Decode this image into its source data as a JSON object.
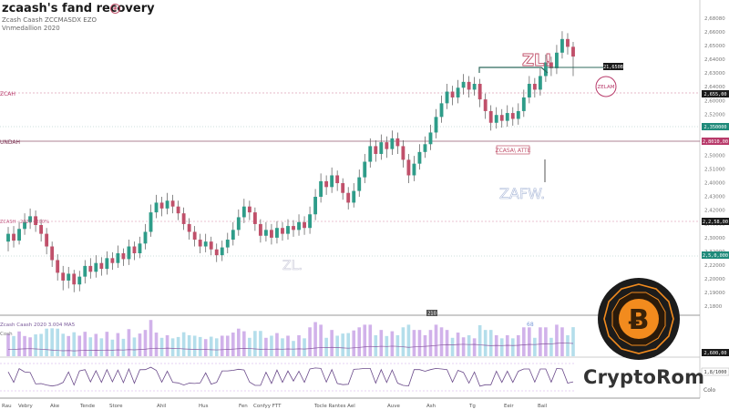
{
  "header": {
    "title": "zcaash's fand recovery",
    "subtitle_1": "Zcash Caash ZCCMASDX EZO",
    "subtitle_2": "Vnmedallion 2020",
    "pin_glyph": "◈"
  },
  "brand": {
    "name": "CryptoRom",
    "logo_glyph": "Ƀ",
    "logo_icon": "bitcoin-coin-icon"
  },
  "colors": {
    "up": "#2e9c89",
    "down": "#c0506a",
    "wick": "#555555",
    "accent_pink": "#b83a6a",
    "teal_tag": "#1f8a7a",
    "coin_orange": "#f28b1e"
  },
  "chart_data": {
    "type": "candlestick",
    "y_ticks": [
      "2,68080",
      "2,66000",
      "2,65000",
      "2,64000",
      "2,63000",
      "2,64000",
      "2,60000",
      "2,52000",
      "2,51000",
      "2,50000",
      "2,50000",
      "2,51000",
      "2,40000",
      "2,43000",
      "2,42000",
      "2,40000",
      "2,30000",
      "2,32000",
      "2,22000",
      "2,20000",
      "2,19000",
      "2,1800"
    ],
    "x_ticks": [
      "Rau",
      "Vebry",
      "Ake",
      "Tende",
      "Store",
      "Ahil",
      "Hus",
      "Fen",
      "Confyy FTT",
      "Tocle Rantes Ael",
      "Auve",
      "Ash",
      "Tg",
      "Eeir",
      "Bail"
    ],
    "candles": [
      {
        "o": 2.25,
        "c": 2.258,
        "h": 2.265,
        "l": 2.24
      },
      {
        "o": 2.258,
        "c": 2.251,
        "h": 2.266,
        "l": 2.244
      },
      {
        "o": 2.251,
        "c": 2.263,
        "h": 2.27,
        "l": 2.247
      },
      {
        "o": 2.263,
        "c": 2.27,
        "h": 2.279,
        "l": 2.257
      },
      {
        "o": 2.27,
        "c": 2.276,
        "h": 2.284,
        "l": 2.263
      },
      {
        "o": 2.276,
        "c": 2.267,
        "h": 2.282,
        "l": 2.26
      },
      {
        "o": 2.267,
        "c": 2.258,
        "h": 2.273,
        "l": 2.25
      },
      {
        "o": 2.258,
        "c": 2.245,
        "h": 2.264,
        "l": 2.237
      },
      {
        "o": 2.245,
        "c": 2.231,
        "h": 2.25,
        "l": 2.224
      },
      {
        "o": 2.231,
        "c": 2.218,
        "h": 2.237,
        "l": 2.21
      },
      {
        "o": 2.218,
        "c": 2.21,
        "h": 2.225,
        "l": 2.2
      },
      {
        "o": 2.21,
        "c": 2.217,
        "h": 2.224,
        "l": 2.202
      },
      {
        "o": 2.217,
        "c": 2.206,
        "h": 2.221,
        "l": 2.198
      },
      {
        "o": 2.206,
        "c": 2.214,
        "h": 2.22,
        "l": 2.199
      },
      {
        "o": 2.214,
        "c": 2.225,
        "h": 2.231,
        "l": 2.207
      },
      {
        "o": 2.225,
        "c": 2.219,
        "h": 2.233,
        "l": 2.212
      },
      {
        "o": 2.219,
        "c": 2.228,
        "h": 2.236,
        "l": 2.213
      },
      {
        "o": 2.228,
        "c": 2.222,
        "h": 2.234,
        "l": 2.215
      },
      {
        "o": 2.222,
        "c": 2.233,
        "h": 2.24,
        "l": 2.216
      },
      {
        "o": 2.233,
        "c": 2.228,
        "h": 2.239,
        "l": 2.221
      },
      {
        "o": 2.228,
        "c": 2.238,
        "h": 2.246,
        "l": 2.223
      },
      {
        "o": 2.238,
        "c": 2.232,
        "h": 2.243,
        "l": 2.225
      },
      {
        "o": 2.232,
        "c": 2.245,
        "h": 2.252,
        "l": 2.226
      },
      {
        "o": 2.245,
        "c": 2.238,
        "h": 2.25,
        "l": 2.231
      },
      {
        "o": 2.238,
        "c": 2.248,
        "h": 2.255,
        "l": 2.233
      },
      {
        "o": 2.248,
        "c": 2.26,
        "h": 2.268,
        "l": 2.242
      },
      {
        "o": 2.26,
        "c": 2.28,
        "h": 2.288,
        "l": 2.255
      },
      {
        "o": 2.28,
        "c": 2.29,
        "h": 2.298,
        "l": 2.274
      },
      {
        "o": 2.29,
        "c": 2.284,
        "h": 2.296,
        "l": 2.276
      },
      {
        "o": 2.284,
        "c": 2.292,
        "h": 2.3,
        "l": 2.278
      },
      {
        "o": 2.292,
        "c": 2.286,
        "h": 2.298,
        "l": 2.279
      },
      {
        "o": 2.286,
        "c": 2.279,
        "h": 2.292,
        "l": 2.272
      },
      {
        "o": 2.279,
        "c": 2.268,
        "h": 2.285,
        "l": 2.262
      },
      {
        "o": 2.268,
        "c": 2.26,
        "h": 2.274,
        "l": 2.252
      },
      {
        "o": 2.26,
        "c": 2.252,
        "h": 2.266,
        "l": 2.245
      },
      {
        "o": 2.252,
        "c": 2.245,
        "h": 2.258,
        "l": 2.238
      },
      {
        "o": 2.245,
        "c": 2.25,
        "h": 2.258,
        "l": 2.239
      },
      {
        "o": 2.25,
        "c": 2.242,
        "h": 2.255,
        "l": 2.236
      },
      {
        "o": 2.242,
        "c": 2.236,
        "h": 2.248,
        "l": 2.229
      },
      {
        "o": 2.236,
        "c": 2.244,
        "h": 2.251,
        "l": 2.23
      },
      {
        "o": 2.244,
        "c": 2.252,
        "h": 2.259,
        "l": 2.238
      },
      {
        "o": 2.252,
        "c": 2.262,
        "h": 2.27,
        "l": 2.246
      },
      {
        "o": 2.262,
        "c": 2.275,
        "h": 2.283,
        "l": 2.256
      },
      {
        "o": 2.275,
        "c": 2.286,
        "h": 2.294,
        "l": 2.269
      },
      {
        "o": 2.286,
        "c": 2.28,
        "h": 2.292,
        "l": 2.272
      },
      {
        "o": 2.28,
        "c": 2.268,
        "h": 2.285,
        "l": 2.261
      },
      {
        "o": 2.268,
        "c": 2.256,
        "h": 2.273,
        "l": 2.249
      },
      {
        "o": 2.256,
        "c": 2.262,
        "h": 2.27,
        "l": 2.25
      },
      {
        "o": 2.262,
        "c": 2.254,
        "h": 2.268,
        "l": 2.247
      },
      {
        "o": 2.254,
        "c": 2.264,
        "h": 2.271,
        "l": 2.248
      },
      {
        "o": 2.264,
        "c": 2.258,
        "h": 2.27,
        "l": 2.251
      },
      {
        "o": 2.258,
        "c": 2.266,
        "h": 2.273,
        "l": 2.252
      },
      {
        "o": 2.266,
        "c": 2.262,
        "h": 2.272,
        "l": 2.255
      },
      {
        "o": 2.262,
        "c": 2.27,
        "h": 2.278,
        "l": 2.256
      },
      {
        "o": 2.27,
        "c": 2.264,
        "h": 2.276,
        "l": 2.257
      },
      {
        "o": 2.264,
        "c": 2.278,
        "h": 2.286,
        "l": 2.258
      },
      {
        "o": 2.278,
        "c": 2.296,
        "h": 2.304,
        "l": 2.272
      },
      {
        "o": 2.296,
        "c": 2.312,
        "h": 2.32,
        "l": 2.29
      },
      {
        "o": 2.312,
        "c": 2.306,
        "h": 2.318,
        "l": 2.298
      },
      {
        "o": 2.306,
        "c": 2.318,
        "h": 2.326,
        "l": 2.3
      },
      {
        "o": 2.318,
        "c": 2.31,
        "h": 2.323,
        "l": 2.302
      },
      {
        "o": 2.31,
        "c": 2.3,
        "h": 2.315,
        "l": 2.293
      },
      {
        "o": 2.3,
        "c": 2.29,
        "h": 2.306,
        "l": 2.283
      },
      {
        "o": 2.29,
        "c": 2.302,
        "h": 2.31,
        "l": 2.285
      },
      {
        "o": 2.302,
        "c": 2.316,
        "h": 2.324,
        "l": 2.296
      },
      {
        "o": 2.316,
        "c": 2.332,
        "h": 2.34,
        "l": 2.31
      },
      {
        "o": 2.332,
        "c": 2.348,
        "h": 2.356,
        "l": 2.326
      },
      {
        "o": 2.348,
        "c": 2.34,
        "h": 2.354,
        "l": 2.332
      },
      {
        "o": 2.34,
        "c": 2.352,
        "h": 2.36,
        "l": 2.334
      },
      {
        "o": 2.352,
        "c": 2.345,
        "h": 2.358,
        "l": 2.336
      },
      {
        "o": 2.345,
        "c": 2.356,
        "h": 2.364,
        "l": 2.339
      },
      {
        "o": 2.356,
        "c": 2.348,
        "h": 2.362,
        "l": 2.34
      },
      {
        "o": 2.348,
        "c": 2.334,
        "h": 2.354,
        "l": 2.326
      },
      {
        "o": 2.334,
        "c": 2.318,
        "h": 2.34,
        "l": 2.31
      },
      {
        "o": 2.318,
        "c": 2.33,
        "h": 2.338,
        "l": 2.312
      },
      {
        "o": 2.33,
        "c": 2.342,
        "h": 2.35,
        "l": 2.324
      },
      {
        "o": 2.342,
        "c": 2.35,
        "h": 2.358,
        "l": 2.336
      },
      {
        "o": 2.35,
        "c": 2.362,
        "h": 2.37,
        "l": 2.344
      },
      {
        "o": 2.362,
        "c": 2.378,
        "h": 2.386,
        "l": 2.356
      },
      {
        "o": 2.378,
        "c": 2.392,
        "h": 2.4,
        "l": 2.372
      },
      {
        "o": 2.392,
        "c": 2.404,
        "h": 2.412,
        "l": 2.386
      },
      {
        "o": 2.404,
        "c": 2.398,
        "h": 2.41,
        "l": 2.39
      },
      {
        "o": 2.398,
        "c": 2.408,
        "h": 2.416,
        "l": 2.392
      },
      {
        "o": 2.408,
        "c": 2.414,
        "h": 2.422,
        "l": 2.401
      },
      {
        "o": 2.414,
        "c": 2.406,
        "h": 2.42,
        "l": 2.398
      },
      {
        "o": 2.406,
        "c": 2.412,
        "h": 2.419,
        "l": 2.4
      },
      {
        "o": 2.412,
        "c": 2.396,
        "h": 2.417,
        "l": 2.388
      },
      {
        "o": 2.396,
        "c": 2.384,
        "h": 2.402,
        "l": 2.376
      },
      {
        "o": 2.384,
        "c": 2.372,
        "h": 2.39,
        "l": 2.364
      },
      {
        "o": 2.372,
        "c": 2.38,
        "h": 2.388,
        "l": 2.366
      },
      {
        "o": 2.38,
        "c": 2.374,
        "h": 2.386,
        "l": 2.367
      },
      {
        "o": 2.374,
        "c": 2.382,
        "h": 2.39,
        "l": 2.368
      },
      {
        "o": 2.382,
        "c": 2.376,
        "h": 2.388,
        "l": 2.369
      },
      {
        "o": 2.376,
        "c": 2.384,
        "h": 2.392,
        "l": 2.37
      },
      {
        "o": 2.384,
        "c": 2.398,
        "h": 2.406,
        "l": 2.378
      },
      {
        "o": 2.398,
        "c": 2.412,
        "h": 2.42,
        "l": 2.392
      },
      {
        "o": 2.412,
        "c": 2.406,
        "h": 2.418,
        "l": 2.398
      },
      {
        "o": 2.406,
        "c": 2.42,
        "h": 2.428,
        "l": 2.4
      },
      {
        "o": 2.42,
        "c": 2.434,
        "h": 2.442,
        "l": 2.414
      },
      {
        "o": 2.434,
        "c": 2.428,
        "h": 2.44,
        "l": 2.42
      },
      {
        "o": 2.428,
        "c": 2.444,
        "h": 2.452,
        "l": 2.422
      },
      {
        "o": 2.444,
        "c": 2.458,
        "h": 2.466,
        "l": 2.438
      },
      {
        "o": 2.458,
        "c": 2.45,
        "h": 2.464,
        "l": 2.442
      },
      {
        "o": 2.45,
        "c": 2.44,
        "h": 2.455,
        "l": 2.42
      }
    ],
    "annotations": [
      {
        "text": "ZL!",
        "kind": "signal"
      },
      {
        "text": "ZCAH",
        "kind": "left-label"
      },
      {
        "text": "UNDAH",
        "kind": "left-label"
      },
      {
        "text": "ZCASH · 2020 · 200%",
        "kind": "left-label"
      },
      {
        "text": "ZELAM",
        "kind": "badge"
      },
      {
        "text": "ZCASA\\ ATTE",
        "kind": "box"
      },
      {
        "text": "ZAFW.",
        "kind": "watermark"
      },
      {
        "text": "ZL.",
        "kind": "watermark"
      }
    ],
    "price_tags": [
      {
        "text": "21,650B",
        "level": 2.458,
        "style": "dark"
      },
      {
        "text": "2,655,00",
        "level": 2.44,
        "style": "dark"
      },
      {
        "text": "2,350000",
        "level": 2.398,
        "style": "teal"
      },
      {
        "text": "2,8010,00",
        "level": 2.38,
        "style": "pink"
      },
      {
        "text": "2,2,58,00",
        "level": 2.286,
        "style": "dark"
      },
      {
        "text": "2,5,0,000",
        "level": 2.26,
        "style": "teal"
      }
    ],
    "indicator": {
      "label": "Zcash Caash 2020 3.004 MA5",
      "sublabel": "Cosh",
      "markers": [
        "210",
        "68"
      ],
      "volume_tags": [
        "2,600,00",
        "1,8/1000"
      ]
    },
    "corner_label": "Colo",
    "ylim": [
      2.18,
      2.47
    ]
  }
}
